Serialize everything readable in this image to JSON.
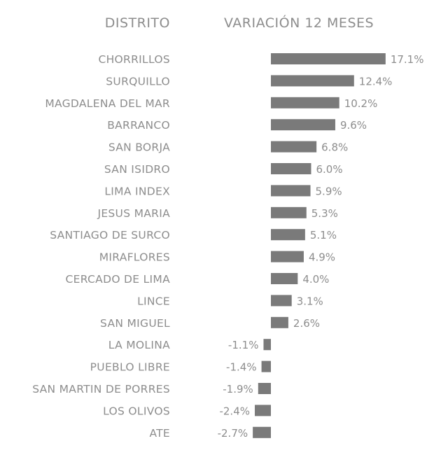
{
  "chart_data": {
    "type": "bar",
    "orientation": "horizontal",
    "column_headers": [
      "DISTRITO",
      "VARIACIÓN 12 MESES"
    ],
    "categories": [
      "CHORRILLOS",
      "SURQUILLO",
      "MAGDALENA DEL MAR",
      "BARRANCO",
      "SAN BORJA",
      "SAN ISIDRO",
      "LIMA INDEX",
      "JESUS MARIA",
      "SANTIAGO DE SURCO",
      "MIRAFLORES",
      "CERCADO DE LIMA",
      "LINCE",
      "SAN MIGUEL",
      "LA MOLINA",
      "PUEBLO LIBRE",
      "SAN MARTIN DE PORRES",
      "LOS OLIVOS",
      "ATE"
    ],
    "values": [
      17.1,
      12.4,
      10.2,
      9.6,
      6.8,
      6.0,
      5.9,
      5.3,
      5.1,
      4.9,
      4.0,
      3.1,
      2.6,
      -1.1,
      -1.4,
      -1.9,
      -2.4,
      -2.7
    ],
    "value_labels": [
      "17.1%",
      "12.4%",
      "10.2%",
      "9.6%",
      "6.8%",
      "6.0%",
      "5.9%",
      "5.3%",
      "5.1%",
      "4.9%",
      "4.0%",
      "3.1%",
      "2.6%",
      "-1.1%",
      "-1.4%",
      "-1.9%",
      "-2.4%",
      "-2.7%"
    ],
    "unit": "%",
    "grid": false,
    "legend": "none",
    "colors": {
      "bar": "#7a7a7a",
      "text": "#8d8d8d",
      "background": "#ffffff"
    }
  }
}
